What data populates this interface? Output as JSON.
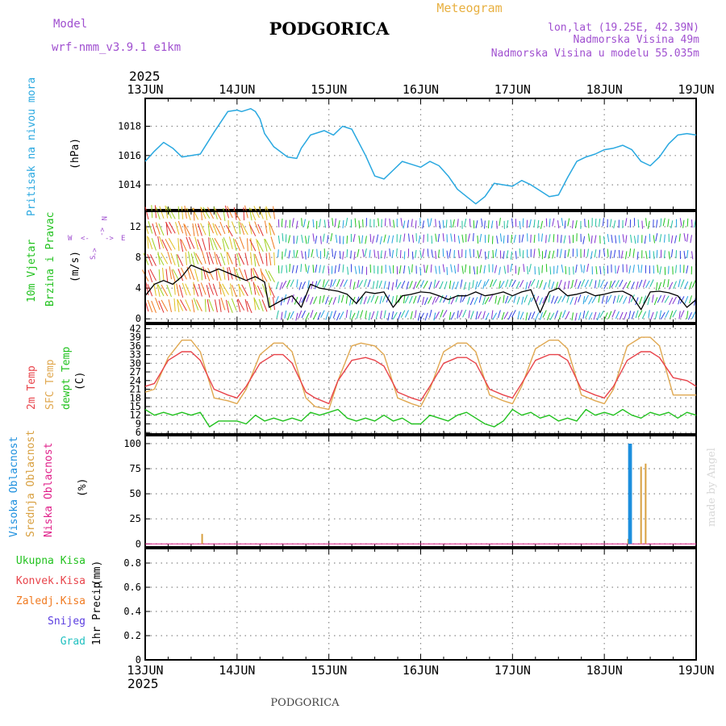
{
  "header": {
    "model_label": "Model",
    "model_name": "wrf-nmm_v3.9.1  e1km",
    "title": "PODGORICA",
    "chart_kind": "Meteogram",
    "lonlat": "lon,lat (19.25E, 42.39N)",
    "elevation": "Nadmorska Visina 49m",
    "model_elevation": "Nadmorska Visina u modelu 55.035m",
    "year": "2025",
    "footer_title": "PODGORICA",
    "credit": "made by Angel"
  },
  "colors": {
    "pressure": "#29a8e0",
    "wind_black": "#000000",
    "t2m": "#e8434a",
    "sfc": "#e0a850",
    "dew": "#22c21f",
    "high_cloud": "#1c8fde",
    "mid_cloud": "#d8a040",
    "low_cloud": "#e0208a",
    "total_precip": "#22c21f",
    "conv_precip": "#e8434a",
    "frz_precip": "#f07a20",
    "snow": "#5a3ce0",
    "graupel": "#20c0c0",
    "header_purple": "#a050d0",
    "header_orange": "#e8b040"
  },
  "chart_data": [
    {
      "panel": "pressure",
      "type": "line",
      "ylabel": "Pritisak na nivou mora",
      "unit": "(hPa)",
      "x_ticks": [
        "13JUN",
        "14JUN",
        "15JUN",
        "16JUN",
        "17JUN",
        "18JUN",
        "19JUN"
      ],
      "ylim": [
        1012.3,
        1019.9
      ],
      "y_ticks": [
        1014,
        1016,
        1018
      ],
      "grid": true,
      "series": [
        {
          "key": "pressure",
          "x_days": [
            0,
            0.1,
            0.2,
            0.3,
            0.4,
            0.6,
            0.75,
            0.9,
            1.0,
            1.05,
            1.15,
            1.2,
            1.25,
            1.3,
            1.4,
            1.55,
            1.65,
            1.7,
            1.8,
            1.95,
            2.05,
            2.15,
            2.25,
            2.3,
            2.4,
            2.5,
            2.6,
            2.7,
            2.8,
            2.9,
            3.0,
            3.1,
            3.2,
            3.3,
            3.4,
            3.5,
            3.6,
            3.7,
            3.8,
            3.9,
            4.0,
            4.1,
            4.2,
            4.3,
            4.4,
            4.5,
            4.6,
            4.7,
            4.8,
            4.9,
            5.0,
            5.1,
            5.2,
            5.3,
            5.4,
            5.5,
            5.6,
            5.7,
            5.8,
            5.9,
            6.0
          ],
          "values": [
            1015.6,
            1016.3,
            1016.9,
            1016.5,
            1015.9,
            1016.1,
            1017.6,
            1019.0,
            1019.1,
            1019.0,
            1019.2,
            1019.0,
            1018.5,
            1017.5,
            1016.6,
            1015.9,
            1015.8,
            1016.5,
            1017.4,
            1017.7,
            1017.4,
            1018.0,
            1017.8,
            1017.2,
            1016.0,
            1014.6,
            1014.4,
            1015.0,
            1015.6,
            1015.4,
            1015.2,
            1015.6,
            1015.3,
            1014.6,
            1013.7,
            1013.2,
            1012.7,
            1013.2,
            1014.1,
            1014.0,
            1013.9,
            1014.3,
            1014.0,
            1013.6,
            1013.2,
            1013.3,
            1014.5,
            1015.6,
            1015.9,
            1016.1,
            1016.4,
            1016.5,
            1016.7,
            1016.4,
            1015.6,
            1015.3,
            1015.9,
            1016.8,
            1017.4,
            1017.5,
            1017.4
          ]
        }
      ]
    },
    {
      "panel": "wind",
      "type": "line",
      "ylabel": "10m Vjetar Brzina i Pravac",
      "unit": "(m/s)",
      "compass_labels": [
        "W",
        "E",
        "N",
        "S"
      ],
      "compass_arrows": [
        "<-",
        "->",
        "<-",
        "->"
      ],
      "ylim": [
        -0.5,
        14
      ],
      "y_ticks": [
        0,
        4,
        8,
        12
      ],
      "grid": true,
      "series": [
        {
          "key": "speed",
          "x_days": [
            0,
            0.1,
            0.2,
            0.3,
            0.4,
            0.5,
            0.6,
            0.7,
            0.8,
            0.9,
            1.0,
            1.1,
            1.2,
            1.3,
            1.35,
            1.5,
            1.6,
            1.7,
            1.8,
            1.9,
            2.0,
            2.1,
            2.2,
            2.3,
            2.4,
            2.5,
            2.6,
            2.7,
            2.8,
            2.9,
            3.0,
            3.1,
            3.2,
            3.3,
            3.4,
            3.5,
            3.6,
            3.7,
            3.8,
            3.9,
            4.0,
            4.1,
            4.2,
            4.3,
            4.4,
            4.5,
            4.6,
            4.7,
            4.8,
            4.9,
            5.0,
            5.1,
            5.2,
            5.3,
            5.4,
            5.5,
            5.6,
            5.7,
            5.8,
            5.9,
            6.0
          ],
          "values": [
            3.0,
            4.5,
            5.0,
            4.5,
            5.5,
            7.0,
            6.5,
            6.0,
            6.5,
            6.0,
            5.5,
            5.0,
            5.5,
            4.8,
            1.5,
            2.5,
            3.0,
            1.5,
            4.5,
            4.0,
            3.8,
            3.6,
            3.2,
            2.0,
            3.5,
            3.3,
            3.5,
            1.5,
            3.0,
            3.2,
            3.5,
            3.4,
            3.0,
            2.5,
            3.0,
            3.0,
            3.5,
            3.0,
            3.2,
            3.5,
            3.0,
            3.5,
            3.8,
            0.8,
            3.5,
            4.0,
            3.0,
            3.2,
            3.5,
            3.0,
            3.2,
            3.5,
            3.6,
            3.0,
            1.2,
            3.5,
            3.6,
            3.4,
            3.0,
            1.5,
            2.5
          ]
        }
      ]
    },
    {
      "panel": "temperature",
      "type": "line",
      "ylabel": "2m Temp",
      "ylabel2": "SFC Temp",
      "ylabel3": "dewpt Temp",
      "unit": "(C)",
      "ylim": [
        5.5,
        43.5
      ],
      "y_ticks": [
        6,
        9,
        12,
        15,
        18,
        21,
        24,
        27,
        30,
        33,
        36,
        39,
        42
      ],
      "grid": true,
      "series": [
        {
          "key": "t2m",
          "x_days": [
            0,
            0.1,
            0.25,
            0.4,
            0.5,
            0.6,
            0.75,
            0.9,
            1.0,
            1.1,
            1.25,
            1.4,
            1.5,
            1.6,
            1.75,
            1.85,
            2.0,
            2.1,
            2.25,
            2.4,
            2.5,
            2.6,
            2.75,
            2.9,
            3.0,
            3.1,
            3.25,
            3.4,
            3.5,
            3.6,
            3.75,
            3.9,
            4.0,
            4.1,
            4.25,
            4.4,
            4.5,
            4.6,
            4.75,
            4.9,
            5.0,
            5.1,
            5.25,
            5.4,
            5.5,
            5.6,
            5.75,
            5.9,
            6.0
          ],
          "values": [
            22,
            23,
            31,
            34,
            34,
            31,
            21,
            19,
            18,
            22,
            30,
            33,
            33,
            30,
            20,
            18,
            16,
            24,
            31,
            32,
            31,
            29,
            20,
            18,
            17,
            22,
            30,
            32,
            32,
            30,
            21,
            19,
            18,
            23,
            31,
            33,
            33,
            31,
            21,
            19,
            18,
            22,
            31,
            34,
            34,
            32,
            25,
            24,
            22
          ]
        },
        {
          "key": "sfc",
          "x_days": [
            0,
            0.1,
            0.25,
            0.4,
            0.5,
            0.6,
            0.75,
            0.9,
            1.0,
            1.1,
            1.25,
            1.4,
            1.5,
            1.6,
            1.75,
            1.85,
            2.0,
            2.1,
            2.25,
            2.35,
            2.5,
            2.6,
            2.75,
            2.9,
            3.0,
            3.1,
            3.25,
            3.4,
            3.5,
            3.6,
            3.75,
            3.9,
            4.0,
            4.1,
            4.25,
            4.4,
            4.5,
            4.6,
            4.75,
            4.9,
            5.0,
            5.1,
            5.25,
            5.4,
            5.5,
            5.6,
            5.75,
            5.9,
            6.0
          ],
          "values": [
            20,
            21,
            32,
            38,
            38,
            34,
            18,
            17,
            16,
            21,
            33,
            37,
            37,
            34,
            18,
            15,
            14,
            24,
            36,
            37,
            36,
            33,
            18,
            16,
            15,
            21,
            34,
            37,
            37,
            34,
            19,
            17,
            16,
            22,
            35,
            38,
            38,
            35,
            19,
            17,
            16,
            21,
            36,
            39,
            39,
            36,
            19,
            19,
            19
          ]
        },
        {
          "key": "dew",
          "x_days": [
            0,
            0.1,
            0.2,
            0.3,
            0.4,
            0.5,
            0.6,
            0.7,
            0.8,
            0.9,
            1.0,
            1.1,
            1.2,
            1.3,
            1.4,
            1.5,
            1.6,
            1.7,
            1.8,
            1.9,
            2.0,
            2.1,
            2.2,
            2.3,
            2.4,
            2.5,
            2.6,
            2.7,
            2.8,
            2.9,
            3.0,
            3.1,
            3.2,
            3.3,
            3.4,
            3.5,
            3.6,
            3.7,
            3.8,
            3.9,
            4.0,
            4.1,
            4.2,
            4.3,
            4.4,
            4.5,
            4.6,
            4.7,
            4.8,
            4.9,
            5.0,
            5.1,
            5.2,
            5.3,
            5.4,
            5.5,
            5.6,
            5.7,
            5.8,
            5.9,
            6.0
          ],
          "values": [
            14,
            12,
            13,
            12,
            13,
            12,
            13,
            8,
            10,
            10,
            10,
            9,
            12,
            10,
            11,
            10,
            11,
            10,
            13,
            12,
            13,
            14,
            11,
            10,
            11,
            10,
            12,
            10,
            11,
            9,
            9,
            12,
            11,
            10,
            12,
            13,
            11,
            9,
            8,
            10,
            14,
            12,
            13,
            11,
            12,
            10,
            11,
            10,
            14,
            12,
            13,
            12,
            14,
            12,
            11,
            13,
            12,
            13,
            11,
            13,
            12
          ]
        }
      ]
    },
    {
      "panel": "cloud",
      "type": "bar",
      "ylabel": "Visoka Oblacnost",
      "ylabel2": "Srednja Oblacnost",
      "ylabel3": "Niska Oblacnost",
      "unit": "(%)",
      "ylim": [
        -3,
        108
      ],
      "y_ticks": [
        0,
        25,
        50,
        75,
        100
      ],
      "grid": true,
      "series": [
        {
          "key": "high_cloud",
          "x_days": [
            5.27,
            5.29
          ],
          "values": [
            100,
            100
          ]
        },
        {
          "key": "mid_cloud",
          "x_days": [
            0.62,
            5.26,
            5.4,
            5.45
          ],
          "values": [
            10,
            5,
            77,
            80
          ]
        }
      ]
    },
    {
      "panel": "precip",
      "type": "bar",
      "ylabel": "1hr Precip",
      "unit": "(mm)",
      "legend": [
        "Ukupna  Kisa",
        "Konvek.Kisa",
        "Zaledj.Kisa",
        "Snijeg",
        "Grad"
      ],
      "ylim": [
        0,
        0.92
      ],
      "y_ticks": [
        0,
        0.2,
        0.4,
        0.6,
        0.8
      ],
      "y_tick_labels": [
        "0",
        "0.2",
        "0.4",
        "0.6",
        "0.8"
      ],
      "grid": true,
      "series": []
    }
  ]
}
